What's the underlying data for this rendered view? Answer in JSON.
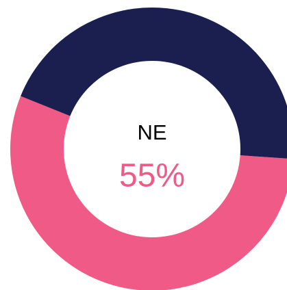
{
  "chart_data": {
    "type": "donut",
    "categories": [
      "NE",
      null
    ],
    "values": [
      55,
      45
    ],
    "value_labels": [
      "55%",
      null
    ],
    "colors": [
      "#f05a87",
      "#1b1f50"
    ]
  }
}
